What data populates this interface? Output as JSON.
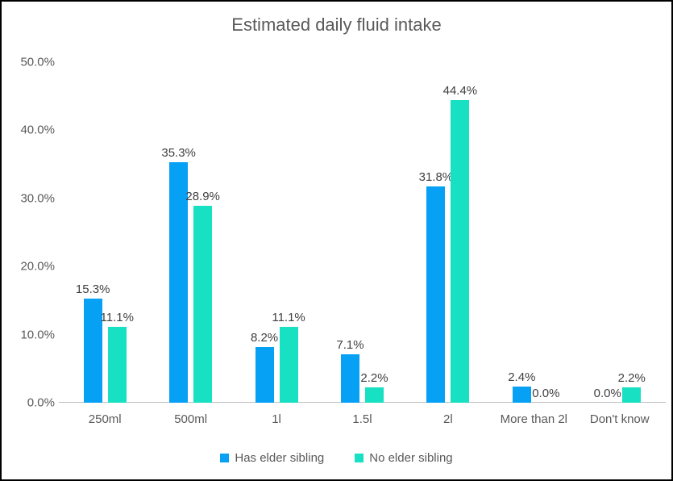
{
  "chart_data": {
    "type": "bar",
    "title": "Estimated daily fluid intake",
    "categories": [
      "250ml",
      "500ml",
      "1l",
      "1.5l",
      "2l",
      "More than 2l",
      "Don't know"
    ],
    "series": [
      {
        "name": "Has elder sibling",
        "color": "#06A0F4",
        "values": [
          15.3,
          35.3,
          8.2,
          7.1,
          31.8,
          2.4,
          0.0
        ]
      },
      {
        "name": "No elder sibling",
        "color": "#17E0C3",
        "values": [
          11.1,
          28.9,
          11.1,
          2.2,
          44.4,
          0.0,
          2.2
        ]
      }
    ],
    "data_labels": true,
    "data_label_format": "0.0%",
    "y_axis": {
      "min": 0,
      "max": 50,
      "tick_values": [
        0,
        10,
        20,
        30,
        40,
        50
      ],
      "ticks": [
        "0.0%",
        "10.0%",
        "20.0%",
        "30.0%",
        "40.0%",
        "50.0%"
      ]
    },
    "grid": false,
    "legend_position": "bottom",
    "colors": {
      "title_text": "#595959",
      "axis_text": "#595959",
      "data_label_text": "#404040",
      "axis_line": "#BFBFBF",
      "frame_border": "#000000",
      "background": "#FFFFFF"
    }
  }
}
